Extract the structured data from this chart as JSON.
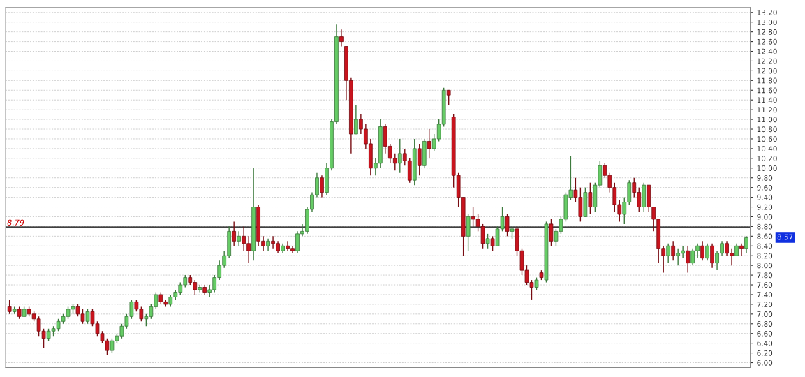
{
  "chart_data": {
    "type": "candlestick",
    "categories": [
      null,
      null,
      null,
      null,
      null,
      null,
      null,
      null,
      null,
      null,
      null,
      null,
      null,
      null,
      null,
      null,
      null,
      null,
      null,
      null,
      null,
      null,
      null,
      null,
      null,
      null,
      null,
      null,
      null,
      null,
      null,
      null,
      null,
      null,
      null,
      null,
      null,
      null,
      null,
      null,
      null,
      null,
      null,
      null,
      null,
      null,
      null,
      null,
      null,
      null,
      null,
      null,
      null,
      null,
      null,
      null,
      null,
      null,
      null,
      null,
      null,
      null,
      null,
      null,
      null,
      null,
      null,
      null,
      null,
      null,
      null,
      null,
      null,
      null,
      null,
      null,
      null,
      null,
      null,
      null,
      null,
      null,
      null,
      null,
      null,
      null,
      null,
      null,
      null,
      null,
      null,
      null,
      null,
      null,
      null,
      null,
      null,
      null,
      null,
      null,
      null,
      null,
      null,
      null,
      null,
      null,
      null,
      null,
      null,
      null,
      null,
      null,
      null,
      null,
      null,
      null,
      null,
      null,
      null,
      null,
      null,
      null,
      null,
      null,
      null,
      null,
      null,
      null,
      null,
      null,
      null,
      null,
      null,
      null,
      null,
      null,
      null,
      null,
      null,
      null,
      null,
      null,
      null,
      null,
      null,
      null,
      null,
      null,
      null,
      null,
      null,
      null
    ],
    "ohlc": [
      [
        7.15,
        7.3,
        7.0,
        7.05
      ],
      [
        7.05,
        7.15,
        7.0,
        7.1
      ],
      [
        7.1,
        7.15,
        6.9,
        6.95
      ],
      [
        6.95,
        7.15,
        6.95,
        7.1
      ],
      [
        7.1,
        7.15,
        6.95,
        7.0
      ],
      [
        7.0,
        7.05,
        6.85,
        6.9
      ],
      [
        6.9,
        6.95,
        6.55,
        6.65
      ],
      [
        6.65,
        6.7,
        6.3,
        6.5
      ],
      [
        6.5,
        6.7,
        6.45,
        6.65
      ],
      [
        6.65,
        6.75,
        6.55,
        6.7
      ],
      [
        6.7,
        6.9,
        6.65,
        6.85
      ],
      [
        6.85,
        7.0,
        6.8,
        6.95
      ],
      [
        6.95,
        7.15,
        6.9,
        7.1
      ],
      [
        7.1,
        7.2,
        7.0,
        7.15
      ],
      [
        7.15,
        7.2,
        6.95,
        7.0
      ],
      [
        7.0,
        7.1,
        6.8,
        6.85
      ],
      [
        6.85,
        7.1,
        6.8,
        7.05
      ],
      [
        7.05,
        7.1,
        6.75,
        6.8
      ],
      [
        6.8,
        6.85,
        6.55,
        6.6
      ],
      [
        6.6,
        6.65,
        6.4,
        6.45
      ],
      [
        6.45,
        6.5,
        6.15,
        6.25
      ],
      [
        6.25,
        6.5,
        6.2,
        6.45
      ],
      [
        6.45,
        6.6,
        6.4,
        6.55
      ],
      [
        6.55,
        6.8,
        6.5,
        6.75
      ],
      [
        6.75,
        7.0,
        6.7,
        6.95
      ],
      [
        6.95,
        7.3,
        6.9,
        7.25
      ],
      [
        7.25,
        7.3,
        7.05,
        7.1
      ],
      [
        7.1,
        7.15,
        6.85,
        6.9
      ],
      [
        6.9,
        7.0,
        6.75,
        6.95
      ],
      [
        6.95,
        7.2,
        6.9,
        7.15
      ],
      [
        7.15,
        7.45,
        7.1,
        7.4
      ],
      [
        7.4,
        7.45,
        7.2,
        7.25
      ],
      [
        7.25,
        7.3,
        7.15,
        7.2
      ],
      [
        7.2,
        7.4,
        7.15,
        7.35
      ],
      [
        7.35,
        7.5,
        7.3,
        7.45
      ],
      [
        7.45,
        7.65,
        7.4,
        7.6
      ],
      [
        7.6,
        7.8,
        7.55,
        7.75
      ],
      [
        7.75,
        7.8,
        7.6,
        7.65
      ],
      [
        7.65,
        7.7,
        7.4,
        7.5
      ],
      [
        7.5,
        7.6,
        7.45,
        7.55
      ],
      [
        7.55,
        7.6,
        7.4,
        7.45
      ],
      [
        7.45,
        7.6,
        7.35,
        7.5
      ],
      [
        7.5,
        7.8,
        7.45,
        7.75
      ],
      [
        7.75,
        8.1,
        7.7,
        8.0
      ],
      [
        8.0,
        8.3,
        7.95,
        8.2
      ],
      [
        8.2,
        8.8,
        8.15,
        8.7
      ],
      [
        8.7,
        8.9,
        8.4,
        8.5
      ],
      [
        8.5,
        8.7,
        8.4,
        8.6
      ],
      [
        8.6,
        8.8,
        8.3,
        8.45
      ],
      [
        8.45,
        8.6,
        8.05,
        8.3
      ],
      [
        8.3,
        10.0,
        8.1,
        9.2
      ],
      [
        9.2,
        9.25,
        8.4,
        8.5
      ],
      [
        8.5,
        8.6,
        8.3,
        8.4
      ],
      [
        8.4,
        8.55,
        8.3,
        8.5
      ],
      [
        8.5,
        8.6,
        8.35,
        8.45
      ],
      [
        8.45,
        8.5,
        8.25,
        8.3
      ],
      [
        8.3,
        8.45,
        8.25,
        8.4
      ],
      [
        8.4,
        8.5,
        8.3,
        8.35
      ],
      [
        8.35,
        8.4,
        8.25,
        8.3
      ],
      [
        8.3,
        8.7,
        8.25,
        8.65
      ],
      [
        8.65,
        8.85,
        8.6,
        8.7
      ],
      [
        8.7,
        9.2,
        8.65,
        9.15
      ],
      [
        9.15,
        9.5,
        9.1,
        9.45
      ],
      [
        9.45,
        9.9,
        9.4,
        9.8
      ],
      [
        9.8,
        9.85,
        9.4,
        9.5
      ],
      [
        9.5,
        10.1,
        9.45,
        10.0
      ],
      [
        10.0,
        11.0,
        9.95,
        10.95
      ],
      [
        10.95,
        12.95,
        10.9,
        12.7
      ],
      [
        12.7,
        12.85,
        12.5,
        12.6
      ],
      [
        12.5,
        12.5,
        11.4,
        11.8
      ],
      [
        11.8,
        11.85,
        10.3,
        10.7
      ],
      [
        10.7,
        11.3,
        10.7,
        11.0
      ],
      [
        11.0,
        11.1,
        10.7,
        10.8
      ],
      [
        10.8,
        10.9,
        10.4,
        10.5
      ],
      [
        10.5,
        10.6,
        9.85,
        10.0
      ],
      [
        10.0,
        10.2,
        9.85,
        10.1
      ],
      [
        10.1,
        11.0,
        10.0,
        10.85
      ],
      [
        10.85,
        10.9,
        10.3,
        10.45
      ],
      [
        10.45,
        10.5,
        10.1,
        10.2
      ],
      [
        10.2,
        10.3,
        9.95,
        10.1
      ],
      [
        10.1,
        10.6,
        9.9,
        10.3
      ],
      [
        10.3,
        10.4,
        10.05,
        10.15
      ],
      [
        10.15,
        10.2,
        9.7,
        9.75
      ],
      [
        9.75,
        10.6,
        9.65,
        10.4
      ],
      [
        10.4,
        10.5,
        9.85,
        10.05
      ],
      [
        10.05,
        10.6,
        10.0,
        10.55
      ],
      [
        10.55,
        10.8,
        10.2,
        10.4
      ],
      [
        10.4,
        10.7,
        10.35,
        10.6
      ],
      [
        10.6,
        11.0,
        10.55,
        10.9
      ],
      [
        10.9,
        11.65,
        10.85,
        11.6
      ],
      [
        11.6,
        11.6,
        11.3,
        11.5
      ],
      [
        11.05,
        11.1,
        9.6,
        9.85
      ],
      [
        9.85,
        9.9,
        9.2,
        9.4
      ],
      [
        9.4,
        9.4,
        8.2,
        8.6
      ],
      [
        8.6,
        9.05,
        8.3,
        9.0
      ],
      [
        9.0,
        9.2,
        8.8,
        8.95
      ],
      [
        8.95,
        9.05,
        8.7,
        8.8
      ],
      [
        8.8,
        8.85,
        8.35,
        8.45
      ],
      [
        8.45,
        8.65,
        8.35,
        8.55
      ],
      [
        8.55,
        8.6,
        8.3,
        8.4
      ],
      [
        8.4,
        8.8,
        8.4,
        8.75
      ],
      [
        8.75,
        9.2,
        8.7,
        9.0
      ],
      [
        9.0,
        9.05,
        8.6,
        8.7
      ],
      [
        8.7,
        8.8,
        8.55,
        8.75
      ],
      [
        8.75,
        8.8,
        8.2,
        8.3
      ],
      [
        8.3,
        8.35,
        7.8,
        7.9
      ],
      [
        7.9,
        8.0,
        7.6,
        7.65
      ],
      [
        7.65,
        7.7,
        7.3,
        7.55
      ],
      [
        7.55,
        7.75,
        7.5,
        7.7
      ],
      [
        7.85,
        7.9,
        7.7,
        7.75
      ],
      [
        7.7,
        8.9,
        7.65,
        8.85
      ],
      [
        8.85,
        8.95,
        8.4,
        8.5
      ],
      [
        8.5,
        8.75,
        8.4,
        8.7
      ],
      [
        8.7,
        9.0,
        8.65,
        8.95
      ],
      [
        8.95,
        9.5,
        8.9,
        9.45
      ],
      [
        9.4,
        10.25,
        9.35,
        9.55
      ],
      [
        9.55,
        9.8,
        9.3,
        9.4
      ],
      [
        9.4,
        9.6,
        8.9,
        9.0
      ],
      [
        9.0,
        9.6,
        9.0,
        9.5
      ],
      [
        9.5,
        9.7,
        9.05,
        9.2
      ],
      [
        9.2,
        9.7,
        9.1,
        9.65
      ],
      [
        9.65,
        10.15,
        9.6,
        10.05
      ],
      [
        10.05,
        10.1,
        9.8,
        9.85
      ],
      [
        9.85,
        9.9,
        9.5,
        9.6
      ],
      [
        9.6,
        9.7,
        9.1,
        9.25
      ],
      [
        9.25,
        9.35,
        8.9,
        9.05
      ],
      [
        9.05,
        9.4,
        8.85,
        9.3
      ],
      [
        9.3,
        9.75,
        9.25,
        9.7
      ],
      [
        9.7,
        9.8,
        9.4,
        9.5
      ],
      [
        9.5,
        9.6,
        9.1,
        9.2
      ],
      [
        9.2,
        9.7,
        9.1,
        9.65
      ],
      [
        9.65,
        9.65,
        9.1,
        9.2
      ],
      [
        9.2,
        9.2,
        8.7,
        8.95
      ],
      [
        8.95,
        8.95,
        8.05,
        8.35
      ],
      [
        8.35,
        8.4,
        7.85,
        8.2
      ],
      [
        8.2,
        8.45,
        8.05,
        8.4
      ],
      [
        8.4,
        8.5,
        8.1,
        8.2
      ],
      [
        8.2,
        8.35,
        8.0,
        8.25
      ],
      [
        8.25,
        8.4,
        8.15,
        8.3
      ],
      [
        8.3,
        8.4,
        7.85,
        8.05
      ],
      [
        8.05,
        8.35,
        8.0,
        8.3
      ],
      [
        8.3,
        8.45,
        8.15,
        8.4
      ],
      [
        8.4,
        8.5,
        8.1,
        8.15
      ],
      [
        8.15,
        8.45,
        8.1,
        8.4
      ],
      [
        8.4,
        8.45,
        7.95,
        8.05
      ],
      [
        8.05,
        8.3,
        7.9,
        8.25
      ],
      [
        8.25,
        8.5,
        8.2,
        8.45
      ],
      [
        8.45,
        8.5,
        8.2,
        8.25
      ],
      [
        8.25,
        8.35,
        8.0,
        8.2
      ],
      [
        8.2,
        8.45,
        8.2,
        8.4
      ],
      [
        8.4,
        8.45,
        8.2,
        8.35
      ],
      [
        8.35,
        8.6,
        8.25,
        8.57
      ]
    ],
    "colors": [
      "#c8141e",
      "#66cc66",
      "#c8141e",
      "#66cc66",
      "#c8141e",
      "#c8141e",
      "#c8141e",
      "#c8141e",
      "#66cc66",
      "#66cc66",
      "#66cc66",
      "#66cc66",
      "#66cc66",
      "#66cc66",
      "#c8141e",
      "#c8141e",
      "#66cc66",
      "#c8141e",
      "#c8141e",
      "#c8141e",
      "#c8141e",
      "#66cc66",
      "#66cc66",
      "#66cc66",
      "#66cc66",
      "#66cc66",
      "#c8141e",
      "#c8141e",
      "#66cc66",
      "#66cc66",
      "#66cc66",
      "#c8141e",
      "#c8141e",
      "#66cc66",
      "#66cc66",
      "#66cc66",
      "#66cc66",
      "#c8141e",
      "#c8141e",
      "#66cc66",
      "#c8141e",
      "#66cc66",
      "#66cc66",
      "#66cc66",
      "#66cc66",
      "#66cc66",
      "#c8141e",
      "#66cc66",
      "#c8141e",
      "#c8141e",
      "#66cc66",
      "#c8141e",
      "#c8141e",
      "#66cc66",
      "#c8141e",
      "#c8141e",
      "#66cc66",
      "#c8141e",
      "#c8141e",
      "#66cc66",
      "#66cc66",
      "#66cc66",
      "#66cc66",
      "#66cc66",
      "#c8141e",
      "#66cc66",
      "#66cc66",
      "#66cc66",
      "#c8141e",
      "#c8141e",
      "#c8141e",
      "#66cc66",
      "#c8141e",
      "#c8141e",
      "#c8141e",
      "#66cc66",
      "#66cc66",
      "#c8141e",
      "#c8141e",
      "#c8141e",
      "#66cc66",
      "#c8141e",
      "#c8141e",
      "#66cc66",
      "#c8141e",
      "#66cc66",
      "#c8141e",
      "#66cc66",
      "#66cc66",
      "#66cc66",
      "#c8141e",
      "#c8141e",
      "#c8141e",
      "#c8141e",
      "#66cc66",
      "#c8141e",
      "#c8141e",
      "#c8141e",
      "#66cc66",
      "#c8141e",
      "#66cc66",
      "#66cc66",
      "#c8141e",
      "#66cc66",
      "#c8141e",
      "#c8141e",
      "#c8141e",
      "#c8141e",
      "#66cc66",
      "#c8141e",
      "#66cc66",
      "#c8141e",
      "#66cc66",
      "#66cc66",
      "#66cc66",
      "#66cc66",
      "#c8141e",
      "#c8141e",
      "#66cc66",
      "#c8141e",
      "#66cc66",
      "#66cc66",
      "#c8141e",
      "#c8141e",
      "#c8141e",
      "#c8141e",
      "#66cc66",
      "#66cc66",
      "#c8141e",
      "#c8141e",
      "#66cc66",
      "#c8141e",
      "#c8141e",
      "#c8141e",
      "#c8141e",
      "#66cc66",
      "#c8141e",
      "#66cc66",
      "#66cc66",
      "#c8141e",
      "#66cc66",
      "#66cc66",
      "#c8141e",
      "#66cc66",
      "#c8141e",
      "#66cc66",
      "#66cc66",
      "#c8141e",
      "#c8141e",
      "#66cc66",
      "#c8141e",
      "#66cc66"
    ],
    "ylim": [
      5.9,
      13.3
    ],
    "yticks": [
      {
        "value": 6,
        "label": "6.00"
      },
      {
        "value": 6.2,
        "label": "6.20"
      },
      {
        "value": 6.4,
        "label": "6.40"
      },
      {
        "value": 6.6,
        "label": "6.60"
      },
      {
        "value": 6.8,
        "label": "6.80"
      },
      {
        "value": 7,
        "label": "7.00"
      },
      {
        "value": 7.2,
        "label": "7.20"
      },
      {
        "value": 7.4,
        "label": "7.40"
      },
      {
        "value": 7.6,
        "label": "7.60"
      },
      {
        "value": 7.8,
        "label": "7.80"
      },
      {
        "value": 8,
        "label": "8.00"
      },
      {
        "value": 8.2,
        "label": "8.20"
      },
      {
        "value": 8.4,
        "label": "8.40"
      },
      {
        "value": 8.6,
        "label": "8.60"
      },
      {
        "value": 8.8,
        "label": "8.80"
      },
      {
        "value": 9,
        "label": "9.00"
      },
      {
        "value": 9.2,
        "label": "9.20"
      },
      {
        "value": 9.4,
        "label": "9.40"
      },
      {
        "value": 9.6,
        "label": "9.60"
      },
      {
        "value": 9.8,
        "label": "9.80"
      },
      {
        "value": 10,
        "label": "10.00"
      },
      {
        "value": 10.2,
        "label": "10.20"
      },
      {
        "value": 10.4,
        "label": "10.40"
      },
      {
        "value": 10.6,
        "label": "10.60"
      },
      {
        "value": 10.8,
        "label": "10.80"
      },
      {
        "value": 11,
        "label": "11.00"
      },
      {
        "value": 11.2,
        "label": "11.20"
      },
      {
        "value": 11.4,
        "label": "11.40"
      },
      {
        "value": 11.6,
        "label": "11.60"
      },
      {
        "value": 11.8,
        "label": "11.80"
      },
      {
        "value": 12,
        "label": "12.00"
      },
      {
        "value": 12.2,
        "label": "12.20"
      },
      {
        "value": 12.4,
        "label": "12.40"
      },
      {
        "value": 12.6,
        "label": "12.60"
      },
      {
        "value": 12.8,
        "label": "12.80"
      },
      {
        "value": 13,
        "label": "13.00"
      },
      {
        "value": 13.2,
        "label": "13.20"
      }
    ],
    "ref_lines": [
      {
        "axis": "y",
        "value": 8.79,
        "label": "8.79",
        "color": "#000000"
      }
    ],
    "annotations": [
      "8.57"
    ],
    "grid": "y",
    "tick_labels": "y"
  }
}
